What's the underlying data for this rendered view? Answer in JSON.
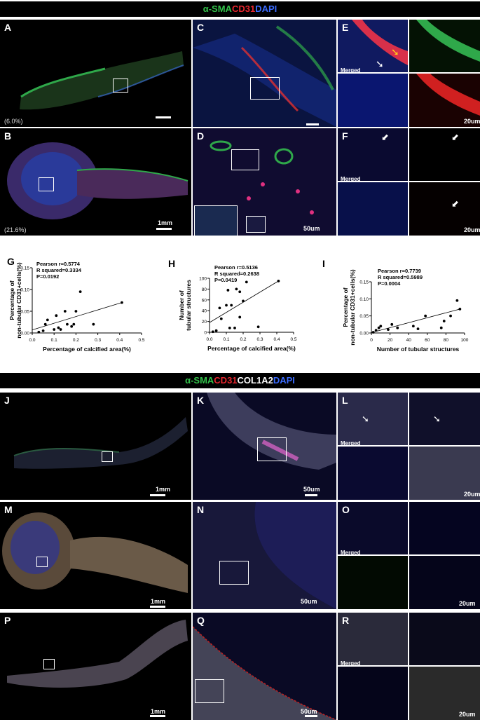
{
  "figure": {
    "title1": {
      "sma": "α-SMA",
      "cd31": "CD31",
      "dapi": "DAPI"
    },
    "title2": {
      "sma": "α-SMA",
      "cd31": "CD31",
      "col": "COL1A2",
      "dapi": "DAPI"
    },
    "panels": {
      "A": {
        "label": "A",
        "percent": "(6.0%)"
      },
      "B": {
        "label": "B",
        "percent": "(21.6%)",
        "scale": "1mm"
      },
      "C": {
        "label": "C"
      },
      "D": {
        "label": "D",
        "scale": "50um"
      },
      "E": {
        "label": "E",
        "merged": "Merged",
        "scale": "20um"
      },
      "F": {
        "label": "F",
        "merged": "Merged",
        "scale": "20um"
      },
      "J": {
        "label": "J",
        "scale": "1mm"
      },
      "K": {
        "label": "K",
        "scale": "50um"
      },
      "L": {
        "label": "L",
        "merged": "Merged",
        "scale": "20um"
      },
      "M": {
        "label": "M",
        "scale": "1mm"
      },
      "N": {
        "label": "N",
        "scale": "50um"
      },
      "O": {
        "label": "O",
        "merged": "Merged",
        "scale": "20um"
      },
      "P": {
        "label": "P",
        "scale": "1mm"
      },
      "Q": {
        "label": "Q",
        "scale": "50um"
      },
      "R": {
        "label": "R",
        "merged": "Merged",
        "scale": "20um"
      }
    },
    "colors": {
      "sma": "#33c24a",
      "cd31": "#e8262e",
      "dapi": "#3b6cff",
      "col": "#ffffff"
    }
  },
  "chart_data": [
    {
      "id": "G",
      "type": "scatter",
      "ylabel_lines": [
        "Percentage of",
        "non-tubular CD31+cells(%)"
      ],
      "xlabel": "Percentage of calcified area(%)",
      "stats": [
        "Pearson r=0.5774",
        "R squared=0.3334",
        "P=0.0192"
      ],
      "xlim": [
        0,
        0.5
      ],
      "ylim": [
        0,
        0.15
      ],
      "xticks": [
        "0.0",
        "0.1",
        "0.2",
        "0.3",
        "0.4",
        "0.5"
      ],
      "yticks": [
        "0.00",
        "0.05",
        "0.10",
        "0.15"
      ],
      "xtick_vals": [
        0,
        0.1,
        0.2,
        0.3,
        0.4,
        0.5
      ],
      "ytick_vals": [
        0,
        0.05,
        0.1,
        0.15
      ],
      "points": [
        [
          0.03,
          0.002
        ],
        [
          0.05,
          0.005
        ],
        [
          0.06,
          0.02
        ],
        [
          0.07,
          0.03
        ],
        [
          0.1,
          0.008
        ],
        [
          0.11,
          0.04
        ],
        [
          0.12,
          0.012
        ],
        [
          0.13,
          0.008
        ],
        [
          0.15,
          0.05
        ],
        [
          0.16,
          0.02
        ],
        [
          0.18,
          0.015
        ],
        [
          0.19,
          0.02
        ],
        [
          0.2,
          0.05
        ],
        [
          0.22,
          0.095
        ],
        [
          0.28,
          0.02
        ],
        [
          0.41,
          0.07
        ]
      ],
      "fit": [
        [
          0.0,
          0.007
        ],
        [
          0.41,
          0.07
        ]
      ]
    },
    {
      "id": "H",
      "type": "scatter",
      "ylabel_lines": [
        "Number of",
        "tubular structures"
      ],
      "xlabel": "Percentage of calcified area(%)",
      "stats": [
        "Pearson r=0.5136",
        "R squared=0.2638",
        "P=0.0419"
      ],
      "xlim": [
        0,
        0.5
      ],
      "ylim": [
        0,
        100
      ],
      "xticks": [
        "0.0",
        "0.1",
        "0.2",
        "0.3",
        "0.4",
        "0.5"
      ],
      "yticks": [
        "0",
        "20",
        "40",
        "60",
        "80",
        "100"
      ],
      "xtick_vals": [
        0,
        0.1,
        0.2,
        0.3,
        0.4,
        0.5
      ],
      "ytick_vals": [
        0,
        20,
        40,
        60,
        80,
        100
      ],
      "points": [
        [
          0.02,
          1
        ],
        [
          0.04,
          3
        ],
        [
          0.06,
          45
        ],
        [
          0.07,
          25
        ],
        [
          0.1,
          50
        ],
        [
          0.11,
          78
        ],
        [
          0.12,
          8
        ],
        [
          0.13,
          50
        ],
        [
          0.15,
          8
        ],
        [
          0.16,
          80
        ],
        [
          0.18,
          28
        ],
        [
          0.2,
          58
        ],
        [
          0.22,
          93
        ],
        [
          0.29,
          10
        ],
        [
          0.41,
          95
        ],
        [
          0.18,
          75
        ]
      ],
      "fit": [
        [
          0.0,
          18
        ],
        [
          0.41,
          95
        ]
      ]
    },
    {
      "id": "I",
      "type": "scatter",
      "ylabel_lines": [
        "Percentage of",
        "non-tubular CD31+cells(%)"
      ],
      "xlabel": "Number of tubular structures",
      "stats": [
        "Pearson r=0.7739",
        "R squared=0.5989",
        "P=0.0004"
      ],
      "xlim": [
        0,
        100
      ],
      "ylim": [
        0,
        0.15
      ],
      "xticks": [
        "0",
        "20",
        "40",
        "60",
        "80",
        "100"
      ],
      "yticks": [
        "0.00",
        "0.05",
        "0.10",
        "0.15"
      ],
      "xtick_vals": [
        0,
        20,
        40,
        60,
        80,
        100
      ],
      "ytick_vals": [
        0,
        0.05,
        0.1,
        0.15
      ],
      "points": [
        [
          2,
          0.002
        ],
        [
          5,
          0.008
        ],
        [
          8,
          0.015
        ],
        [
          10,
          0.02
        ],
        [
          18,
          0.01
        ],
        [
          22,
          0.025
        ],
        [
          28,
          0.015
        ],
        [
          45,
          0.02
        ],
        [
          50,
          0.012
        ],
        [
          58,
          0.05
        ],
        [
          75,
          0.015
        ],
        [
          78,
          0.035
        ],
        [
          85,
          0.05
        ],
        [
          92,
          0.095
        ],
        [
          95,
          0.07
        ]
      ],
      "fit": [
        [
          0,
          0.001
        ],
        [
          95,
          0.07
        ]
      ]
    }
  ]
}
